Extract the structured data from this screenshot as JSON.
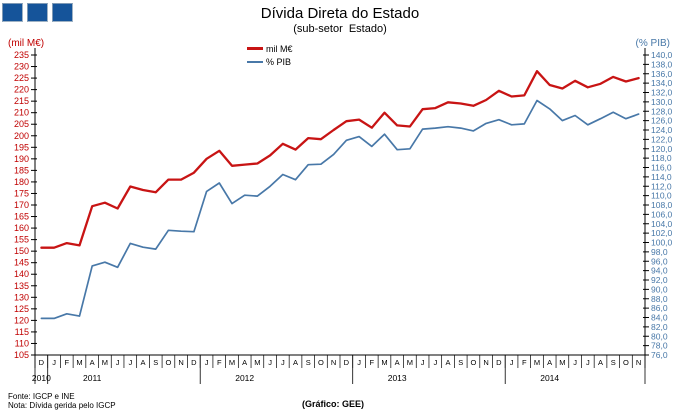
{
  "header": {
    "title": "Dívida Direta do Estado",
    "subtitle": "(sub-setor  Estado)"
  },
  "legend": {
    "items": [
      {
        "label": "mil M€",
        "color": "#C81414"
      },
      {
        "label": "% PIB",
        "color": "#4878A8"
      }
    ]
  },
  "footer": {
    "fonte": "Fonte: IGCP e INE",
    "nota": "Nota: Dívida gerida pelo IGCP",
    "grafico": "(Gráfico:  GEE)"
  },
  "logo": {
    "description": "three-blue-squares",
    "color": "#15549A"
  },
  "chart_data": {
    "type": "line",
    "title": "Dívida Direta do Estado",
    "subtitle": "(sub-setor Estado)",
    "grid": false,
    "legend_position": "top-center",
    "x_months": [
      "D",
      "J",
      "F",
      "M",
      "A",
      "M",
      "J",
      "J",
      "A",
      "S",
      "O",
      "N",
      "D",
      "J",
      "F",
      "M",
      "A",
      "M",
      "J",
      "J",
      "A",
      "S",
      "O",
      "N",
      "D",
      "J",
      "F",
      "M",
      "A",
      "M",
      "J",
      "J",
      "A",
      "S",
      "O",
      "N",
      "D",
      "J",
      "F",
      "M",
      "A",
      "M",
      "J",
      "J",
      "A",
      "S",
      "O",
      "N"
    ],
    "year_spans": [
      {
        "label": "2010",
        "months": 1
      },
      {
        "label": "2011",
        "months": 12
      },
      {
        "label": "2012",
        "months": 12
      },
      {
        "label": "2013",
        "months": 12
      },
      {
        "label": "2014",
        "months": 11
      }
    ],
    "left_axis": {
      "label": "(mil M€)",
      "min": 105,
      "max": 235,
      "step": 5,
      "color": "#C00000",
      "tick_labels": [
        "235",
        "230",
        "225",
        "220",
        "215",
        "210",
        "205",
        "200",
        "195",
        "190",
        "185",
        "180",
        "175",
        "170",
        "165",
        "160",
        "155",
        "150",
        "145",
        "140",
        "135",
        "130",
        "125",
        "120",
        "115",
        "110",
        "105"
      ]
    },
    "right_axis": {
      "label": "(% PIB)",
      "min": 76,
      "max": 140,
      "step": 2,
      "color": "#4878A8",
      "tick_labels": [
        "140,0",
        "138,0",
        "136,0",
        "134,0",
        "132,0",
        "130,0",
        "128,0",
        "126,0",
        "124,0",
        "122,0",
        "120,0",
        "118,0",
        "116,0",
        "114,0",
        "112,0",
        "110,0",
        "108,0",
        "106,0",
        "104,0",
        "102,0",
        "100,0",
        "98,0",
        "96,0",
        "94,0",
        "92,0",
        "90,0",
        "88,0",
        "86,0",
        "84,0",
        "82,0",
        "80,0",
        "78,0",
        "76,0"
      ]
    },
    "series": [
      {
        "name": "mil M€",
        "axis": "left",
        "color": "#C81414",
        "stroke_width": 2.3,
        "values": [
          151.5,
          151.5,
          153.5,
          152.5,
          169.5,
          171.0,
          168.5,
          178.0,
          176.5,
          175.5,
          181.0,
          181.0,
          184.0,
          190.0,
          193.5,
          187.0,
          187.5,
          188.0,
          191.5,
          196.5,
          194.0,
          199.0,
          198.5,
          202.5,
          206.3,
          207.0,
          203.5,
          210.0,
          204.5,
          204.0,
          211.5,
          212.0,
          214.5,
          214.0,
          213.0,
          215.5,
          219.5,
          217.0,
          217.5,
          228.0,
          222.0,
          220.5,
          223.8,
          221.0,
          222.5,
          225.5,
          223.5,
          225.0
        ]
      },
      {
        "name": "% PIB",
        "axis": "right",
        "color": "#4878A8",
        "stroke_width": 1.7,
        "values": [
          83.8,
          83.8,
          84.8,
          84.3,
          95.0,
          95.8,
          94.7,
          99.8,
          99.0,
          98.6,
          102.6,
          102.4,
          102.3,
          110.9,
          112.7,
          108.3,
          110.1,
          109.9,
          112.0,
          114.5,
          113.4,
          116.6,
          116.7,
          118.8,
          121.8,
          122.6,
          120.5,
          123.1,
          119.8,
          120.0,
          124.2,
          124.4,
          124.7,
          124.4,
          123.8,
          125.4,
          126.2,
          125.1,
          125.3,
          130.3,
          128.5,
          126.0,
          127.1,
          125.1,
          126.4,
          127.8,
          126.4,
          127.4
        ]
      }
    ]
  }
}
